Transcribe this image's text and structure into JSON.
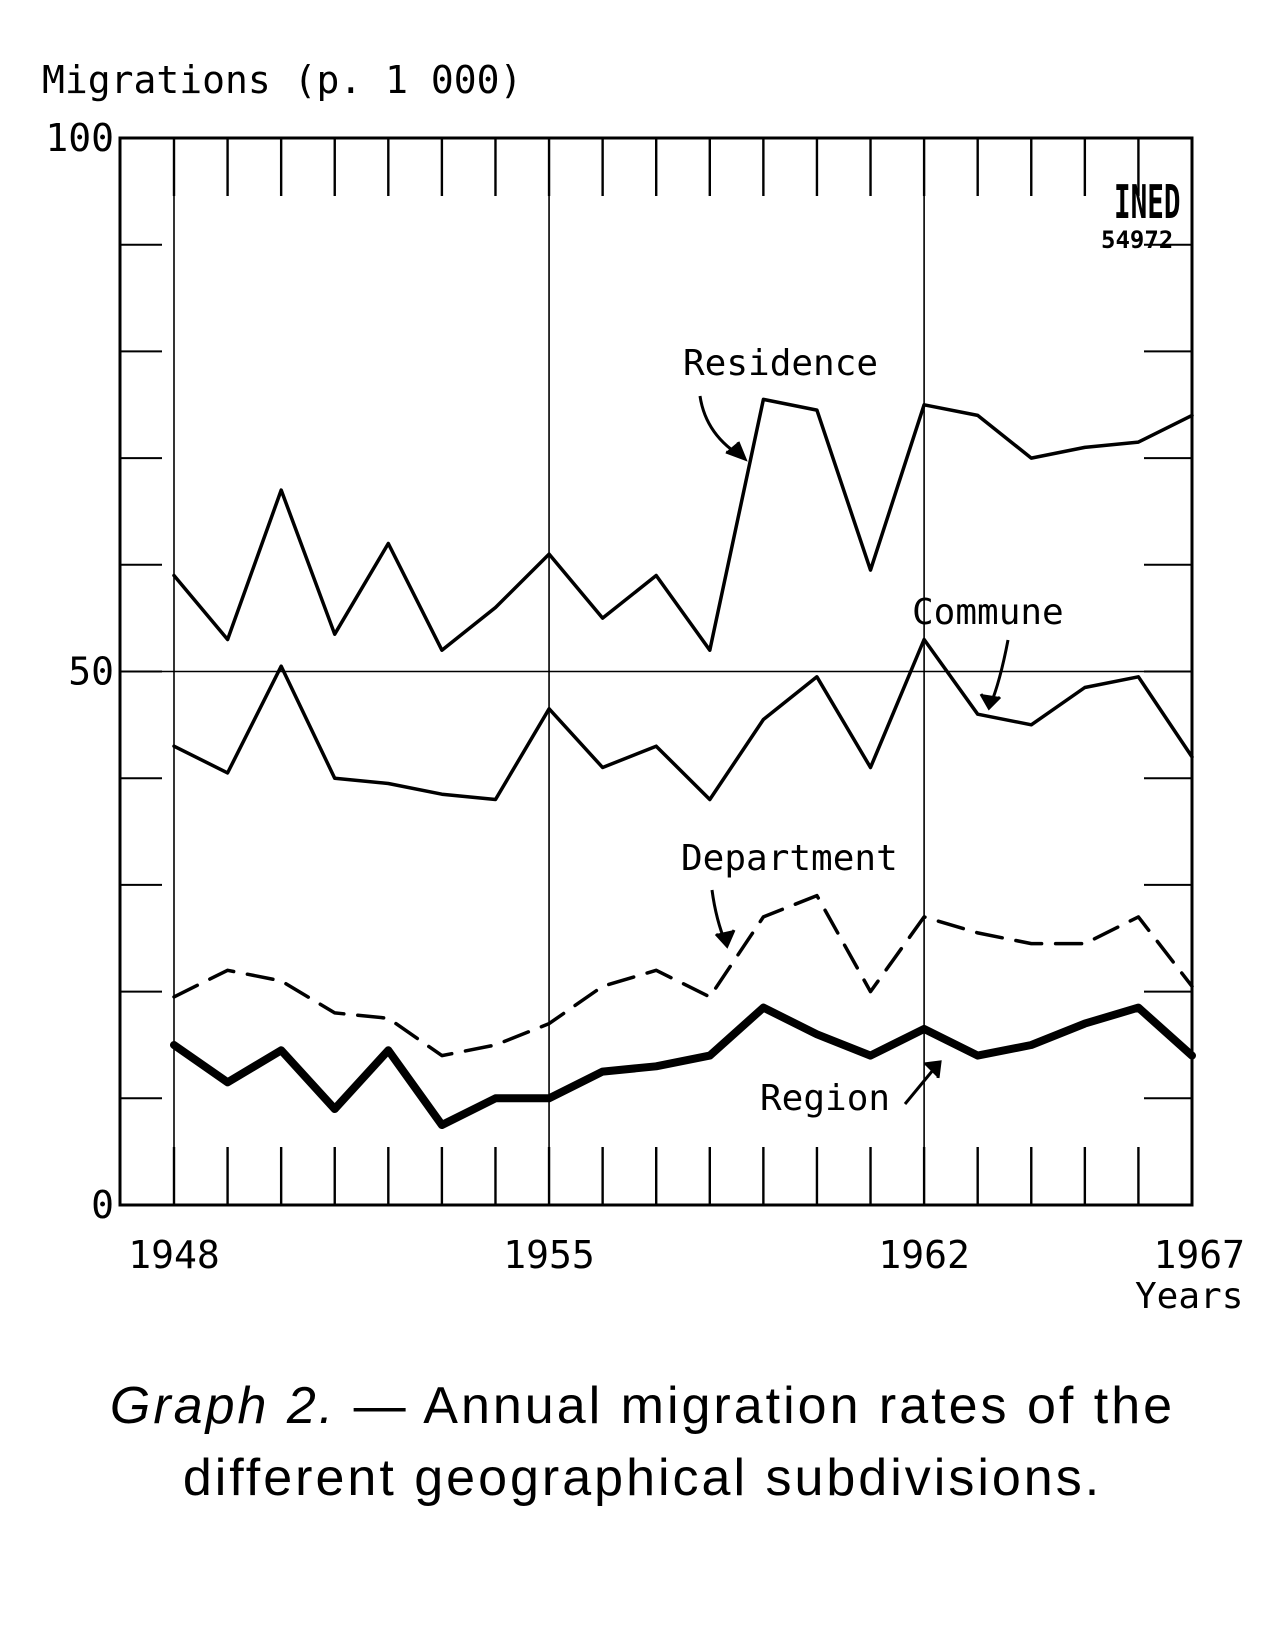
{
  "chart_data": {
    "type": "line",
    "ylabel": "Migrations (p. 1 000)",
    "xlabel": "Years",
    "x_tick_labels": [
      "1948",
      "1955",
      "1962",
      "1967"
    ],
    "y_tick_labels": [
      "0",
      "50",
      "100"
    ],
    "x_range": [
      1948,
      1967
    ],
    "ylim": [
      0,
      100
    ],
    "grid": "vertical lines at labelled years, horizontal line at 50",
    "x": [
      1948,
      1949,
      1950,
      1951,
      1952,
      1953,
      1954,
      1955,
      1956,
      1957,
      1958,
      1959,
      1960,
      1961,
      1962,
      1963,
      1964,
      1965,
      1966,
      1967
    ],
    "series": [
      {
        "name": "Residence",
        "style": "solid",
        "values": [
          59,
          53,
          67,
          53.5,
          62,
          52,
          56,
          61,
          55,
          59,
          52,
          75.5,
          74.5,
          59.5,
          75,
          74,
          70,
          71,
          71.5,
          74
        ]
      },
      {
        "name": "Commune",
        "style": "solid",
        "values": [
          43,
          40.5,
          50.5,
          40,
          39.5,
          38.5,
          38,
          46.5,
          41,
          43,
          38,
          45.5,
          49.5,
          41,
          53,
          46,
          45,
          48.5,
          49.5,
          42
        ]
      },
      {
        "name": "Department",
        "style": "dashed",
        "values": [
          19.5,
          22,
          21,
          18,
          17.5,
          14,
          15,
          17,
          20.5,
          22,
          19.5,
          27,
          29,
          20,
          27,
          25.5,
          24.5,
          24.5,
          27,
          20.5
        ]
      },
      {
        "name": "Region",
        "style": "bold",
        "values": [
          15,
          11.5,
          14.5,
          9,
          14.5,
          7.5,
          10,
          10,
          12.5,
          13,
          14,
          18.5,
          16,
          14,
          16.5,
          14,
          15,
          17,
          18.5,
          14
        ]
      }
    ],
    "annotations": [
      "Residence",
      "Commune",
      "Department",
      "Region"
    ],
    "stamp": [
      "INED",
      "54972"
    ]
  },
  "caption": {
    "lead": "Graph 2.",
    "rest": " — Annual migration rates of the different geographical subdivisions."
  }
}
